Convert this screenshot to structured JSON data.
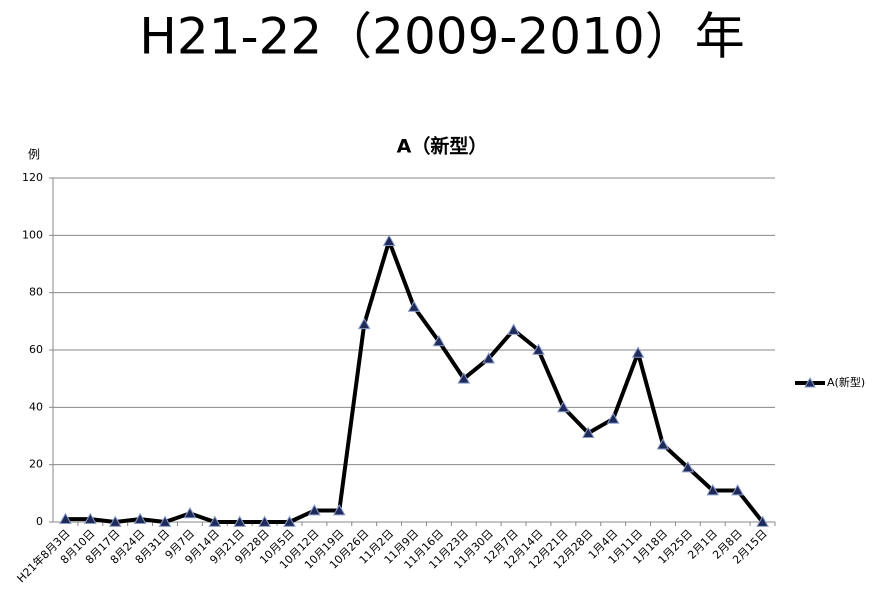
{
  "heading": "H21-22（2009-2010）年",
  "chart_data": {
    "type": "line",
    "title": "A（新型）",
    "y_label": "例",
    "categories": [
      "H21年8月3日",
      "8月10日",
      "8月17日",
      "8月24日",
      "8月31日",
      "9月7日",
      "9月14日",
      "9月21日",
      "9月28日",
      "10月5日",
      "10月12日",
      "10月19日",
      "10月26日",
      "11月2日",
      "11月9日",
      "11月16日",
      "11月23日",
      "11月30日",
      "12月7日",
      "12月14日",
      "12月21日",
      "12月28日",
      "1月4日",
      "1月11日",
      "1月18日",
      "1月25日",
      "2月1日",
      "2月8日",
      "2月15日"
    ],
    "series": [
      {
        "name": "A(新型)",
        "color": "#000000",
        "marker_color": "#1f2a5a",
        "values": [
          1,
          1,
          0,
          1,
          0,
          3,
          0,
          0,
          0,
          0,
          4,
          4,
          69,
          98,
          75,
          63,
          50,
          57,
          67,
          60,
          40,
          31,
          36,
          59,
          27,
          19,
          11,
          11,
          0
        ]
      }
    ],
    "ylim": [
      0,
      120
    ],
    "yticks": [
      0,
      20,
      40,
      60,
      80,
      100,
      120
    ],
    "grid": true,
    "legend": "right"
  }
}
